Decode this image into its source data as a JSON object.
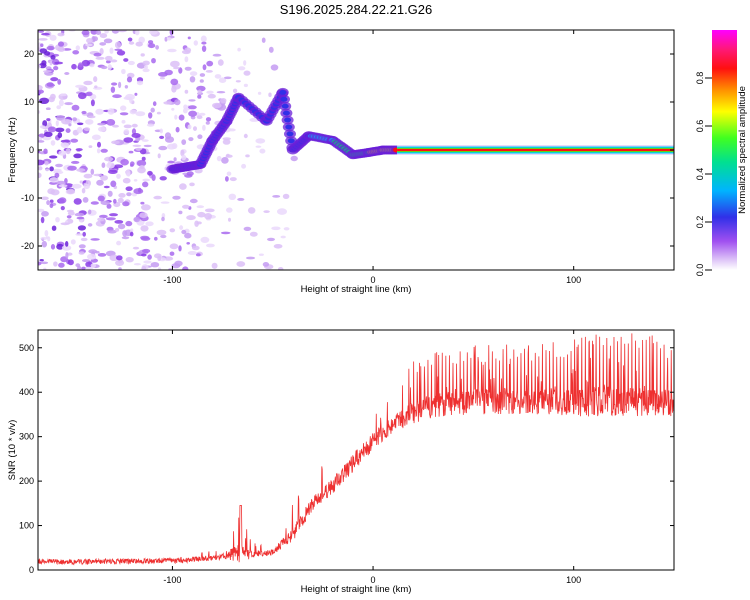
{
  "figure_title": "S196.2025.284.22.21.G26",
  "chart_data": [
    {
      "type": "heatmap",
      "title": "",
      "xlabel": "Height of straight line (km)",
      "ylabel": "Frequency (Hz)",
      "xlim": [
        -167,
        150
      ],
      "ylim": [
        -25,
        25
      ],
      "xticks": [
        -100,
        0,
        100
      ],
      "xtick_labels": [
        "-100",
        "0",
        "100"
      ],
      "yticks": [
        -20,
        -10,
        0,
        10,
        20
      ],
      "ytick_labels": [
        "-20",
        "-10",
        "0",
        "10",
        "20"
      ],
      "colorbar": {
        "label": "Normalized spectral amplitude",
        "range": [
          0,
          1
        ],
        "ticks": [
          0.0,
          0.2,
          0.4,
          0.6,
          0.8
        ],
        "tick_labels": [
          "0.0",
          "0.2",
          "0.4",
          "0.6",
          "0.8"
        ],
        "colors": [
          "#ffffff",
          "#d9b8f5",
          "#8a2be2",
          "#2020e0",
          "#00c8ff",
          "#00e070",
          "#80ff00",
          "#ffff00",
          "#ff8000",
          "#ff0000",
          "#ff2080",
          "#ff00ff"
        ]
      },
      "trace_points": [
        {
          "x": -100,
          "y": -4,
          "amplitude": 0.3
        },
        {
          "x": -93,
          "y": -3.5,
          "amplitude": 0.25
        },
        {
          "x": -86,
          "y": -3,
          "amplitude": 0.35
        },
        {
          "x": -80,
          "y": 2,
          "amplitude": 0.3
        },
        {
          "x": -73,
          "y": 6,
          "amplitude": 0.28
        },
        {
          "x": -67,
          "y": 11,
          "amplitude": 0.3
        },
        {
          "x": -53,
          "y": 6,
          "amplitude": 0.3
        },
        {
          "x": -45,
          "y": 12,
          "amplitude": 0.25
        },
        {
          "x": -40,
          "y": 0,
          "amplitude": 0.3
        },
        {
          "x": -32,
          "y": 3,
          "amplitude": 0.35
        },
        {
          "x": -20,
          "y": 2,
          "amplitude": 0.45
        },
        {
          "x": -10,
          "y": -1,
          "amplitude": 0.5
        },
        {
          "x": -2,
          "y": -0.5,
          "amplitude": 0.55
        },
        {
          "x": 5,
          "y": 0,
          "amplitude": 0.6
        },
        {
          "x": 12,
          "y": 0,
          "amplitude": 0.8
        },
        {
          "x": 150,
          "y": 0,
          "amplitude": 0.9
        }
      ],
      "note": "Broadband noise (purple speckle) for heights below about -40 km; narrow high-amplitude line at 0 Hz from about +10 km to +150 km."
    },
    {
      "type": "line",
      "title": "",
      "xlabel": "Height of straight line (km)",
      "ylabel": "SNR (10 * v/v)",
      "xlim": [
        -167,
        150
      ],
      "ylim": [
        0,
        540
      ],
      "xticks": [
        -100,
        0,
        100
      ],
      "xtick_labels": [
        "-100",
        "0",
        "100"
      ],
      "yticks": [
        0,
        100,
        200,
        300,
        400,
        500
      ],
      "ytick_labels": [
        "0",
        "100",
        "200",
        "300",
        "400",
        "500"
      ],
      "series": [
        {
          "name": "SNR",
          "color": "#ee3030",
          "x": [
            -167,
            -150,
            -130,
            -110,
            -95,
            -85,
            -75,
            -66,
            -60,
            -50,
            -40,
            -30,
            -20,
            -10,
            0,
            10,
            20,
            30,
            40,
            60,
            80,
            100,
            120,
            140,
            150
          ],
          "values": [
            20,
            18,
            20,
            20,
            22,
            25,
            30,
            40,
            35,
            40,
            80,
            150,
            190,
            240,
            290,
            330,
            355,
            370,
            375,
            380,
            380,
            378,
            380,
            380,
            375
          ],
          "peak_values": [
            30,
            25,
            25,
            25,
            30,
            40,
            50,
            145,
            65,
            70,
            150,
            220,
            265,
            330,
            380,
            420,
            470,
            490,
            500,
            510,
            510,
            520,
            540,
            530,
            510
          ]
        }
      ]
    }
  ]
}
